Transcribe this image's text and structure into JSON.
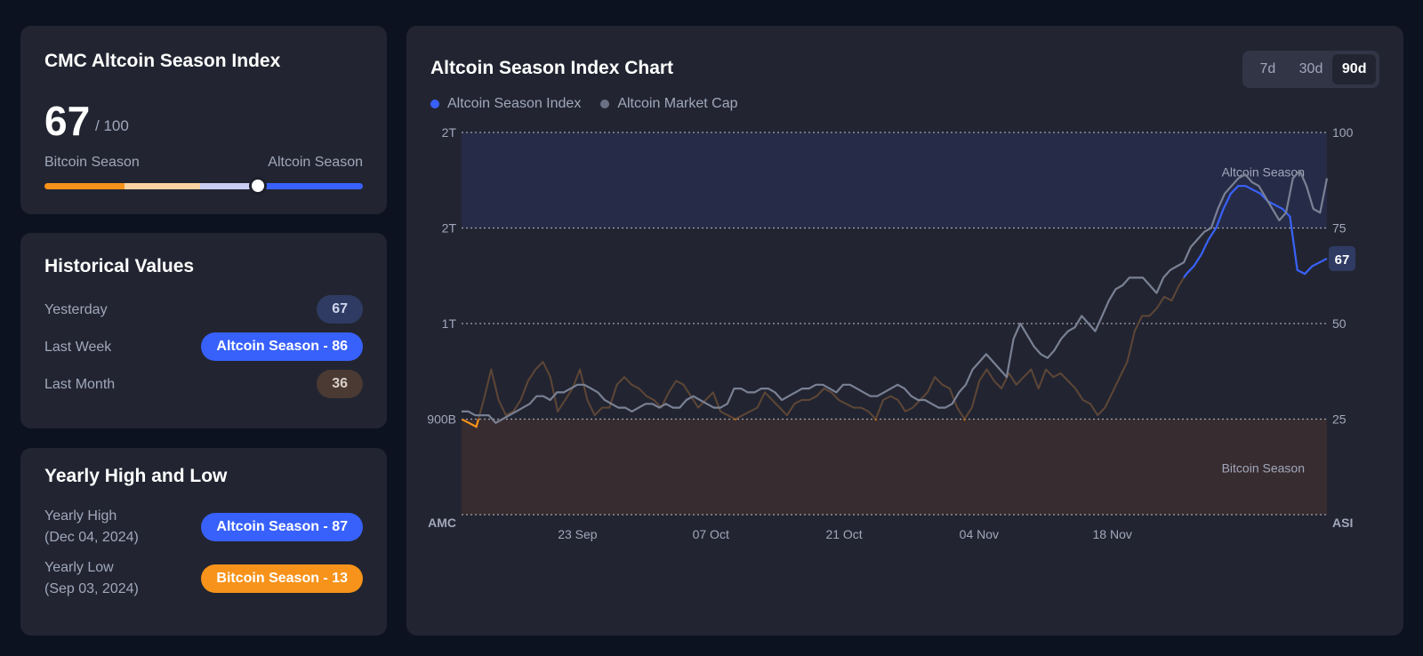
{
  "index_card": {
    "title": "CMC Altcoin Season Index",
    "value": "67",
    "max": "/ 100",
    "left_label": "Bitcoin Season",
    "right_label": "Altcoin Season",
    "value_fraction": 0.67,
    "scale_colors": [
      "#f7931a",
      "#fbd3a3",
      "#c8cdf4",
      "#3861fb"
    ]
  },
  "historical": {
    "title": "Historical Values",
    "rows": [
      {
        "label": "Yesterday",
        "value": "67",
        "bg": "#2f3b63",
        "fg": "#cfd6ee"
      },
      {
        "label": "Last Week",
        "value": "Altcoin Season - 86",
        "bg": "#3861fb",
        "fg": "#ffffff"
      },
      {
        "label": "Last Month",
        "value": "36",
        "bg": "#4a3a33",
        "fg": "#d9cfc9"
      }
    ]
  },
  "yearly": {
    "title": "Yearly High and Low",
    "high_label": "Yearly High",
    "high_date": "(Dec 04, 2024)",
    "high_value": "Altcoin Season - 87",
    "low_label": "Yearly Low",
    "low_date": "(Sep 03, 2024)",
    "low_value": "Bitcoin Season - 13",
    "high_color": "#3861fb",
    "low_color": "#f7931a"
  },
  "chart_panel": {
    "title": "Altcoin Season Index Chart",
    "legend": [
      {
        "label": "Altcoin Season Index",
        "color": "#3861fb"
      },
      {
        "label": "Altcoin Market Cap",
        "color": "#6b7185"
      }
    ],
    "ranges": [
      "7d",
      "30d",
      "90d"
    ],
    "active_range": "90d"
  },
  "chart_data": {
    "type": "line",
    "x_ticks": [
      "23 Sep",
      "07 Oct",
      "21 Oct",
      "04 Nov",
      "18 Nov"
    ],
    "left_axis": {
      "label": "AMC",
      "ticks": [
        "2T",
        "2T",
        "1T",
        "900B"
      ]
    },
    "right_axis": {
      "label": "ASI",
      "ticks": [
        "100",
        "75",
        "50",
        "25"
      ],
      "ylim": [
        0,
        100
      ]
    },
    "zones": [
      {
        "label": "Altcoin Season",
        "from": 75,
        "to": 100
      },
      {
        "label": "Bitcoin Season",
        "from": 0,
        "to": 25
      }
    ],
    "current_value": "67",
    "series": [
      {
        "name": "Altcoin Season Index",
        "color": "#3861fb",
        "values": [
          25,
          24,
          23,
          30,
          38,
          30,
          26,
          27,
          30,
          35,
          38,
          40,
          36,
          27,
          30,
          33,
          38,
          30,
          26,
          28,
          28,
          34,
          36,
          34,
          33,
          31,
          30,
          28,
          32,
          35,
          34,
          31,
          28,
          30,
          32,
          27,
          26,
          25,
          26,
          27,
          28,
          32,
          30,
          28,
          26,
          29,
          30,
          30,
          31,
          33,
          32,
          30,
          29,
          28,
          28,
          27,
          25,
          30,
          31,
          30,
          27,
          28,
          30,
          32,
          36,
          34,
          33,
          28,
          25,
          28,
          35,
          38,
          35,
          33,
          37,
          34,
          36,
          38,
          33,
          38,
          36,
          37,
          35,
          33,
          30,
          29,
          26,
          28,
          32,
          36,
          40,
          48,
          52,
          52,
          54,
          57,
          56,
          60,
          63,
          65,
          68,
          72,
          75,
          80,
          84,
          86,
          86,
          85,
          84,
          82,
          81,
          80,
          78,
          64,
          63,
          65,
          66,
          67
        ],
        "low_zone_color": "#f7931a",
        "mid_color": "#5e4636",
        "high_zone_color": "#3861fb"
      },
      {
        "name": "Altcoin Market Cap",
        "color": "#7a8194",
        "values": [
          27,
          27,
          26,
          26,
          26,
          24,
          25,
          26,
          27,
          28,
          29,
          31,
          31,
          30,
          32,
          32,
          33,
          34,
          34,
          33,
          32,
          30,
          29,
          28,
          28,
          27,
          28,
          29,
          29,
          28,
          29,
          28,
          28,
          30,
          31,
          30,
          29,
          28,
          28,
          29,
          33,
          33,
          32,
          32,
          33,
          33,
          32,
          30,
          31,
          32,
          33,
          33,
          34,
          34,
          33,
          32,
          34,
          34,
          33,
          32,
          31,
          31,
          32,
          33,
          34,
          33,
          31,
          30,
          30,
          29,
          28,
          28,
          29,
          32,
          34,
          38,
          40,
          42,
          40,
          38,
          36,
          46,
          50,
          47,
          44,
          42,
          41,
          43,
          46,
          48,
          49,
          52,
          50,
          48,
          52,
          56,
          59,
          60,
          62,
          62,
          62,
          60,
          58,
          62,
          64,
          65,
          66,
          70,
          72,
          74,
          75,
          80,
          84,
          86,
          88,
          89,
          87,
          86,
          83,
          80,
          77,
          79,
          88,
          90,
          86,
          80,
          79,
          88
        ]
      }
    ]
  }
}
